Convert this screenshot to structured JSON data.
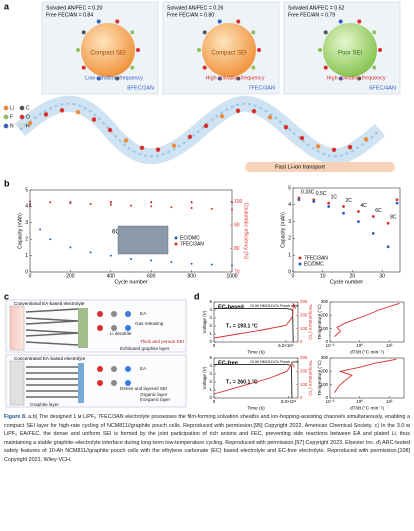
{
  "panel_a": {
    "label": "a",
    "cells": [
      {
        "solvated": "Solvated AN/FEC = 0.20",
        "free": "Free FEC/AN = 0.84",
        "sei": "Compact SEI",
        "frequency": "Low solvation frequency",
        "electrolyte": "8FEC/2AN"
      },
      {
        "solvated": "Solvated AN/FEC = 0.26",
        "free": "Free FEC/AN = 0.80",
        "sei": "Compact SEI",
        "frequency": "High solvation frequency",
        "electrolyte": "7FEC/3AN"
      },
      {
        "solvated": "Solvated AN/FEC = 0.52",
        "free": "Free FEC/AN = 0.79",
        "sei": "Poor SEI",
        "frequency": "High solvation frequency",
        "electrolyte": "6FEC/4AN"
      }
    ],
    "legend": [
      "Li",
      "C",
      "F",
      "O",
      "N",
      "H"
    ],
    "transport": "Fast Li-ion transport"
  },
  "panel_b": {
    "label": "b",
    "cycling": {
      "xlabel": "Cycle number",
      "ylabel": "Capacity (mAh)",
      "y2label": "Coulombic efficiency (%)",
      "annotation": "6C",
      "xlim": [
        0,
        1000
      ],
      "xticks": [
        0,
        200,
        400,
        600,
        800,
        1000
      ],
      "ylim": [
        0,
        5
      ],
      "yticks": [
        0,
        1,
        2,
        3,
        4,
        5
      ],
      "y2lim": [
        70,
        105
      ],
      "y2ticks": [
        70,
        80,
        90,
        100
      ],
      "series": [
        {
          "name": "EC/DMC",
          "color": "#2f5fc4",
          "x": [
            0,
            50,
            100,
            200,
            300,
            400,
            500,
            600,
            700,
            800,
            900,
            1000
          ],
          "values": [
            4.1,
            2.6,
            2.0,
            1.5,
            1.2,
            1.0,
            0.8,
            0.7,
            0.6,
            0.5,
            0.45,
            0.4
          ]
        },
        {
          "name": "7FEC/3AN",
          "color": "#d9302c",
          "x": [
            0,
            100,
            200,
            300,
            400,
            500,
            600,
            700,
            800,
            900,
            1000
          ],
          "values": [
            4.3,
            4.25,
            4.2,
            4.15,
            4.1,
            4.05,
            4.0,
            3.95,
            3.9,
            3.85,
            3.8
          ]
        },
        {
          "color": "#2f5fc4",
          "axis": "y2",
          "x": [
            0,
            200,
            400,
            600,
            800,
            1000
          ],
          "values": [
            99,
            99.5,
            99.6,
            99.7,
            99.7,
            99.8
          ]
        },
        {
          "color": "#d9302c",
          "axis": "y2",
          "x": [
            0,
            200,
            400,
            600,
            800,
            1000
          ],
          "values": [
            98,
            99.9,
            99.9,
            99.9,
            99.9,
            99.9
          ]
        }
      ]
    },
    "rate": {
      "xlabel": "Cycle number",
      "ylabel": "Capacity (mAh)",
      "xlim": [
        0,
        36
      ],
      "xticks": [
        0,
        10,
        20,
        30
      ],
      "ylim": [
        0,
        5
      ],
      "yticks": [
        0,
        1,
        2,
        3,
        4,
        5
      ],
      "rates": [
        "0.33C",
        "0.5C",
        "1C",
        "2C",
        "4C",
        "6C",
        "8C"
      ],
      "series": [
        {
          "name": "7FEC/3AN",
          "color": "#d9302c",
          "x": [
            2,
            7,
            12,
            17,
            22,
            27,
            32,
            35
          ],
          "values": [
            4.4,
            4.3,
            4.1,
            3.9,
            3.6,
            3.3,
            2.9,
            4.3
          ]
        },
        {
          "name": "EC/DMC",
          "color": "#2f5fc4",
          "x": [
            2,
            7,
            12,
            17,
            22,
            27,
            32,
            35
          ],
          "values": [
            4.3,
            4.2,
            3.9,
            3.5,
            3.0,
            2.3,
            1.5,
            4.1
          ]
        }
      ]
    }
  },
  "panel_c": {
    "label": "c",
    "top": {
      "title": "Conventional EA-based electrolyte",
      "labels": [
        "EA",
        "Gas releasing",
        "Li dendrite",
        "Thick and porous SEI",
        "Exfoliated graphite layer"
      ]
    },
    "bottom": {
      "title": "Concentrated EA-based electrolyte",
      "labels": [
        "EA",
        "Dense and layered SEI",
        "Organic layer",
        "Inorganic layer",
        "Graphite layer"
      ]
    }
  },
  "panel_d": {
    "label": "d",
    "rows": [
      {
        "title": "EC-based",
        "cell": "10 Ah NMC811/Gr Pouch cells",
        "t2": "T₂ = 193.1 °C",
        "left": {
          "xlabel": "Time (s)",
          "ylabel": "Voltage (V)",
          "y2label": "Temperature (°C)",
          "xlim": [
            0,
            70000
          ],
          "xticks": [
            0,
            {
              "value": 60000,
              "label": "6.0×10⁴"
            }
          ],
          "ylim": [
            0,
            5
          ],
          "yticks": [
            0,
            1,
            2,
            3,
            4,
            5
          ],
          "y2lim": [
            0,
            300
          ],
          "y2ticks": [
            0,
            100,
            200,
            300
          ],
          "series": [
            {
              "color": "#222222",
              "x": [
                0,
                60000,
                64000,
                65500,
                66000
              ],
              "values": [
                4.2,
                4.2,
                4.1,
                3.9,
                0
              ]
            },
            {
              "color": "#d9302c",
              "axis": "y2",
              "x": [
                0,
                20000,
                40000,
                60000,
                64000,
                65500,
                66000,
                68000
              ],
              "values": [
                30,
                60,
                90,
                125,
                170,
                193,
                290,
                250
              ]
            }
          ]
        },
        "right": {
          "xlabel": "dT/dt (°C min⁻¹)",
          "ylabel": "Temperature (°C)",
          "xlog": true,
          "xlim": [
            0.01,
            1000
          ],
          "xticks": [
            {
              "value": 0.01,
              "label": "10⁻²"
            },
            {
              "value": 1,
              "label": "10⁰"
            },
            {
              "value": 100,
              "label": "10²"
            }
          ],
          "ylim": [
            0,
            300
          ],
          "yticks": [
            0,
            100,
            200,
            300
          ],
          "series": [
            {
              "color": "#d9302c",
              "x": [
                0.02,
                0.05,
                0.03,
                0.1,
                0.5,
                2,
                20,
                500
              ],
              "values": [
                40,
                80,
                110,
                140,
                170,
                193,
                240,
                290
              ]
            }
          ]
        }
      },
      {
        "title": "EC-free",
        "cell": "10 Ah NMC811/Gr Pouch cells",
        "t2": "T₂ = 260.1 °C",
        "left": {
          "xlabel": "Time (s)",
          "ylabel": "Voltage (V)",
          "y2label": "Temperature (°C)",
          "xlim": [
            0,
            90000
          ],
          "xticks": [
            0,
            {
              "value": 80000,
              "label": "8.0×10⁴"
            }
          ],
          "ylim": [
            0,
            5
          ],
          "yticks": [
            0,
            1,
            2,
            3,
            4,
            5
          ],
          "y2lim": [
            0,
            300
          ],
          "y2ticks": [
            0,
            100,
            200,
            300
          ],
          "series": [
            {
              "color": "#222222",
              "x": [
                0,
                78000,
                82000,
                83000,
                83500
              ],
              "values": [
                4.2,
                4.2,
                4.1,
                3.9,
                0
              ]
            },
            {
              "color": "#d9302c",
              "axis": "y2",
              "x": [
                0,
                20000,
                40000,
                60000,
                78000,
                82000,
                83500,
                86000
              ],
              "values": [
                30,
                70,
                110,
                150,
                200,
                240,
                260,
                230
              ]
            }
          ]
        },
        "right": {
          "xlabel": "dT/dt (°C min⁻¹)",
          "ylabel": "Temperature (°C)",
          "xlog": true,
          "xlim": [
            0.01,
            1000
          ],
          "xticks": [
            {
              "value": 0.01,
              "label": "10⁻²"
            },
            {
              "value": 1,
              "label": "10⁰"
            },
            {
              "value": 100,
              "label": "10²"
            }
          ],
          "ylim": [
            0,
            300
          ],
          "yticks": [
            0,
            100,
            200,
            300
          ],
          "series": [
            {
              "color": "#d9302c",
              "x": [
                0.02,
                0.04,
                0.1,
                0.3,
                0.05,
                1,
                10,
                300
              ],
              "values": [
                40,
                90,
                130,
                170,
                200,
                230,
                260,
                290
              ]
            }
          ]
        }
      }
    ]
  },
  "caption": {
    "lead": "Figure 8.",
    "text": "a,b) The designed 1 м LiPF₆ 7FEC/3AN electrolyte possesses the film-forming solvation sheaths and ion-hopping-assisting channels simultaneously, enabling a compact SEI layer for high-rate cycling of NCM811//graphite pouch cells. Reproduced with permission.[95] Copyright 2022, American Chemical Society. c) In the 3.0 м LiPF₆ EA/FEC, the dense and uniform SEI is formed by the joint participation of rich anions and FEC, preventing side reactions between EA and plated Li, thus maintaining a stable graphite–electrolyte interface during long-term low-temperature cycling. Reproduced with permission.[97] Copyright 2023, Elsevier Inc. d) ARC-tested safety features of 10-Ah NCM811//graphite pouch cells with the ethylene carbonate (EC) based electrolyte and EC-free electrolyte. Reproduced with permission.[108] Copyright 2021, Wiley-VCH."
  }
}
